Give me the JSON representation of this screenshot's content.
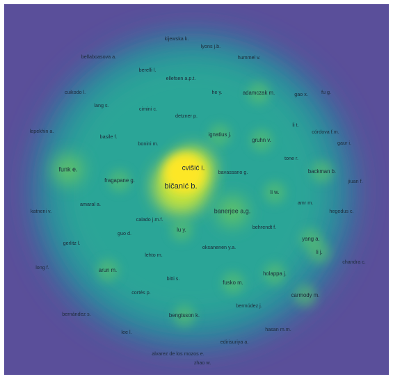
{
  "map": {
    "background_color": "#5a4f9a",
    "density_colors": [
      "#3f5ba6",
      "#2e7fa0",
      "#2aa597",
      "#5fc26a",
      "#c9e53a",
      "#fde725"
    ],
    "nodes": [
      {
        "label": "kijewska k.",
        "weight": 1
      },
      {
        "label": "lyons j.b.",
        "weight": 1
      },
      {
        "label": "bellaboasova a.",
        "weight": 1
      },
      {
        "label": "hummel v.",
        "weight": 1
      },
      {
        "label": "berelli l.",
        "weight": 1
      },
      {
        "label": "ellefsen a.p.t.",
        "weight": 1
      },
      {
        "label": "cuikodo l.",
        "weight": 1
      },
      {
        "label": "he y.",
        "weight": 1
      },
      {
        "label": "adamczak m.",
        "weight": 2
      },
      {
        "label": "gao x.",
        "weight": 1
      },
      {
        "label": "fu g.",
        "weight": 1
      },
      {
        "label": "lang s.",
        "weight": 1
      },
      {
        "label": "cimini c.",
        "weight": 1
      },
      {
        "label": "detzner p.",
        "weight": 1
      },
      {
        "label": "li t.",
        "weight": 1
      },
      {
        "label": "córdova f.m.",
        "weight": 1
      },
      {
        "label": "lepekhin a.",
        "weight": 1
      },
      {
        "label": "basile f.",
        "weight": 1
      },
      {
        "label": "ignatius j.",
        "weight": 2
      },
      {
        "label": "gruhn v.",
        "weight": 2
      },
      {
        "label": "bonini m.",
        "weight": 1
      },
      {
        "label": "gaur i.",
        "weight": 1
      },
      {
        "label": "tone r.",
        "weight": 1
      },
      {
        "label": "funk e.",
        "weight": 3
      },
      {
        "label": "cvišić i.",
        "weight": 4
      },
      {
        "label": "bavassano g.",
        "weight": 1
      },
      {
        "label": "backman b.",
        "weight": 2
      },
      {
        "label": "fragapane g.",
        "weight": 2
      },
      {
        "label": "bičanić b.",
        "weight": 5
      },
      {
        "label": "jiuan f.",
        "weight": 1
      },
      {
        "label": "li w.",
        "weight": 2
      },
      {
        "label": "amaral a.",
        "weight": 1
      },
      {
        "label": "amr m.",
        "weight": 1
      },
      {
        "label": "katneni v.",
        "weight": 1
      },
      {
        "label": "banerjee a.g.",
        "weight": 3
      },
      {
        "label": "hegedus c.",
        "weight": 1
      },
      {
        "label": "calado j.m.f.",
        "weight": 1
      },
      {
        "label": "behrendt f.",
        "weight": 1
      },
      {
        "label": "lu y.",
        "weight": 2
      },
      {
        "label": "guo d.",
        "weight": 1
      },
      {
        "label": "yang a.",
        "weight": 2
      },
      {
        "label": "gerlitz l.",
        "weight": 1
      },
      {
        "label": "oksanenen y.a.",
        "weight": 1
      },
      {
        "label": "li j.",
        "weight": 2
      },
      {
        "label": "lehto m.",
        "weight": 1
      },
      {
        "label": "long f.",
        "weight": 1
      },
      {
        "label": "chandra c.",
        "weight": 1
      },
      {
        "label": "arun m.",
        "weight": 2
      },
      {
        "label": "holappa j.",
        "weight": 2
      },
      {
        "label": "bitti s.",
        "weight": 1
      },
      {
        "label": "fusko m.",
        "weight": 2
      },
      {
        "label": "cortés p.",
        "weight": 1
      },
      {
        "label": "carmody m.",
        "weight": 2
      },
      {
        "label": "bermúdez j.",
        "weight": 1
      },
      {
        "label": "bengtsson k.",
        "weight": 2
      },
      {
        "label": "bernández s.",
        "weight": 1
      },
      {
        "label": "hasan m.m.",
        "weight": 1
      },
      {
        "label": "lee l.",
        "weight": 1
      },
      {
        "label": "edirisuriya a.",
        "weight": 1
      },
      {
        "label": "alvarez de los mozos e.",
        "weight": 1
      },
      {
        "label": "zhao w.",
        "weight": 1
      }
    ]
  }
}
